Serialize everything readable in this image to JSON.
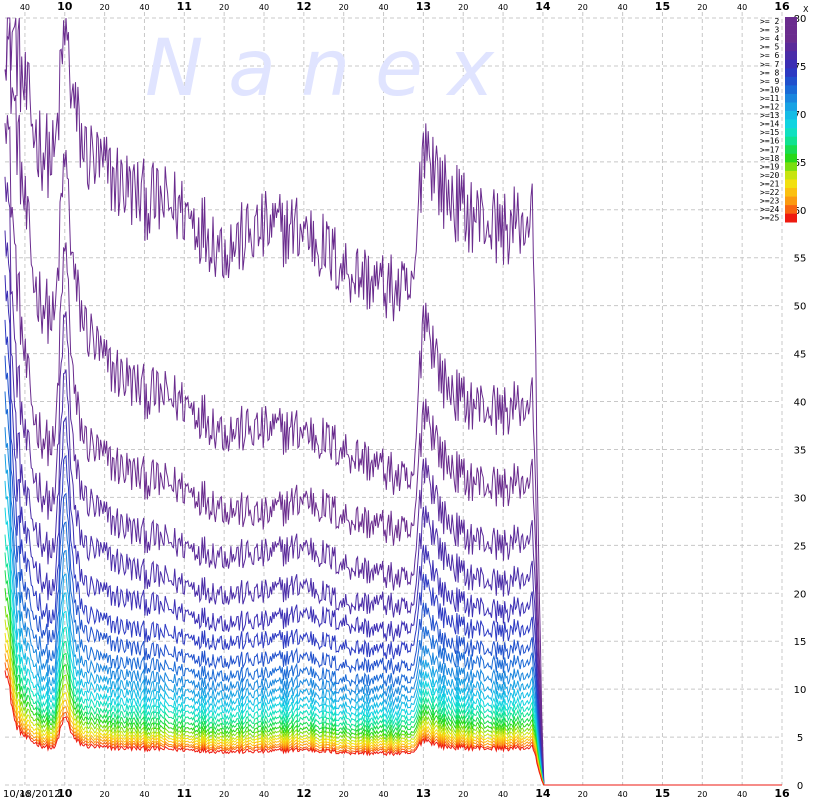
{
  "watermark": "N a n e x",
  "date_label": "10/18/2012",
  "y_unit_label": "X",
  "chart_data": {
    "type": "line",
    "title": "",
    "xlabel": "",
    "ylabel": "",
    "x_start": "09:30",
    "x_end": "16:00",
    "data_end": "14:00",
    "ylim": [
      0,
      80
    ],
    "yticks": [
      0,
      5,
      10,
      15,
      20,
      25,
      30,
      35,
      40,
      45,
      50,
      55,
      60,
      65,
      70,
      75,
      80
    ],
    "grid": true,
    "legend_position": "top-right",
    "x_tick_labels": [
      {
        "time": "09:40",
        "label": "40",
        "major": false
      },
      {
        "time": "10:00",
        "label": "10",
        "major": true
      },
      {
        "time": "10:20",
        "label": "20",
        "major": false
      },
      {
        "time": "10:40",
        "label": "40",
        "major": false
      },
      {
        "time": "11:00",
        "label": "11",
        "major": true
      },
      {
        "time": "11:20",
        "label": "20",
        "major": false
      },
      {
        "time": "11:40",
        "label": "40",
        "major": false
      },
      {
        "time": "12:00",
        "label": "12",
        "major": true
      },
      {
        "time": "12:20",
        "label": "20",
        "major": false
      },
      {
        "time": "12:40",
        "label": "40",
        "major": false
      },
      {
        "time": "13:00",
        "label": "13",
        "major": true
      },
      {
        "time": "13:20",
        "label": "20",
        "major": false
      },
      {
        "time": "13:40",
        "label": "40",
        "major": false
      },
      {
        "time": "14:00",
        "label": "14",
        "major": true
      },
      {
        "time": "14:20",
        "label": "20",
        "major": false
      },
      {
        "time": "14:40",
        "label": "40",
        "major": false
      },
      {
        "time": "15:00",
        "label": "15",
        "major": true
      },
      {
        "time": "15:20",
        "label": "20",
        "major": false
      },
      {
        "time": "15:40",
        "label": "40",
        "major": false
      },
      {
        "time": "16:00",
        "label": "16",
        "major": true
      }
    ],
    "anchor_times": [
      "09:30",
      "09:35",
      "09:40",
      "09:45",
      "09:50",
      "09:55",
      "10:00",
      "10:05",
      "10:10",
      "10:20",
      "10:40",
      "11:00",
      "11:20",
      "11:40",
      "12:00",
      "12:20",
      "12:40",
      "12:55",
      "13:00",
      "13:10",
      "13:20",
      "13:40",
      "13:55",
      "14:00"
    ],
    "series": [
      {
        "name": ">= 2",
        "color": "#6a2c8e",
        "anchors": [
          80,
          78,
          72,
          68,
          66,
          65,
          79,
          70,
          66,
          64,
          61,
          60,
          56,
          58,
          58,
          54,
          52,
          51,
          68,
          62,
          60,
          58,
          59,
          0
        ]
      },
      {
        "name": ">= 3",
        "color": "#6a2c8e",
        "anchors": [
          80,
          70,
          60,
          52,
          50,
          48,
          66,
          52,
          48,
          44,
          41,
          40,
          37,
          37,
          37,
          35,
          33,
          31,
          50,
          42,
          40,
          39,
          40,
          0
        ]
      },
      {
        "name": ">= 4",
        "color": "#6a2c8e",
        "anchors": [
          74,
          55,
          44,
          38,
          36,
          35,
          57,
          40,
          36,
          34,
          32,
          31,
          29,
          28,
          30,
          28,
          27,
          26,
          40,
          34,
          32,
          31,
          32,
          0
        ]
      },
      {
        "name": ">= 5",
        "color": "#5b2a9a",
        "anchors": [
          68,
          45,
          36,
          32,
          30,
          29,
          50,
          33,
          30,
          28,
          26,
          25,
          24,
          24,
          25,
          23,
          22,
          21,
          34,
          28,
          26,
          25,
          26,
          0
        ]
      },
      {
        "name": ">= 6",
        "color": "#4a2ca8",
        "anchors": [
          62,
          38,
          30,
          27,
          25,
          24,
          44,
          28,
          25,
          24,
          22,
          21,
          20,
          20,
          21,
          19,
          19,
          18,
          29,
          24,
          22,
          21,
          22,
          0
        ]
      },
      {
        "name": ">= 7",
        "color": "#3b2eb4",
        "anchors": [
          57,
          33,
          26,
          23,
          21,
          20,
          39,
          24,
          21,
          20,
          19,
          18,
          17,
          17,
          18,
          17,
          16,
          16,
          25,
          20,
          19,
          18,
          19,
          0
        ]
      },
      {
        "name": ">= 8",
        "color": "#2c39c2",
        "anchors": [
          52,
          29,
          23,
          20,
          18,
          17,
          35,
          21,
          18,
          17,
          16,
          15.5,
          15,
          15,
          15.5,
          14.5,
          14,
          14,
          22,
          17.5,
          16.5,
          16,
          16.5,
          0
        ]
      },
      {
        "name": ">= 9",
        "color": "#2050cc",
        "anchors": [
          48,
          26,
          20,
          17.5,
          16,
          15,
          31,
          18.5,
          16,
          15,
          14,
          13.5,
          13,
          13,
          13.5,
          12.5,
          12.5,
          12,
          19,
          15,
          14.5,
          14,
          14.5,
          0
        ]
      },
      {
        "name": ">=10",
        "color": "#1a6ad6",
        "anchors": [
          44,
          23,
          18,
          15.5,
          14,
          13,
          28,
          16.5,
          14,
          13,
          12.5,
          12,
          11.5,
          11.5,
          12,
          11,
          11,
          10.7,
          16.5,
          13.5,
          13,
          12.5,
          13,
          0
        ]
      },
      {
        "name": ">=11",
        "color": "#1a86de",
        "anchors": [
          40,
          21,
          16,
          14,
          12.5,
          11.5,
          25,
          14.5,
          12.5,
          11.8,
          11.2,
          10.8,
          10.4,
          10.4,
          10.8,
          10,
          9.9,
          9.7,
          14.5,
          12,
          11.5,
          11.2,
          11.6,
          0
        ]
      },
      {
        "name": ">=12",
        "color": "#18a2e4",
        "anchors": [
          37,
          19,
          14.5,
          12.5,
          11.2,
          10.4,
          22.5,
          13,
          11.3,
          10.7,
          10.2,
          9.8,
          9.5,
          9.5,
          9.8,
          9.1,
          9,
          8.8,
          13,
          10.8,
          10.4,
          10.1,
          10.5,
          0
        ]
      },
      {
        "name": ">=13",
        "color": "#14bce6",
        "anchors": [
          34,
          17,
          13,
          11.3,
          10.2,
          9.5,
          20.5,
          11.8,
          10.3,
          9.8,
          9.3,
          9,
          8.7,
          8.7,
          9,
          8.3,
          8.2,
          8.1,
          11.8,
          9.8,
          9.5,
          9.2,
          9.6,
          0
        ]
      },
      {
        "name": ">=14",
        "color": "#10d4e0",
        "anchors": [
          31,
          15.5,
          11.8,
          10.3,
          9.3,
          8.7,
          18.5,
          10.7,
          9.4,
          8.9,
          8.5,
          8.2,
          8,
          8,
          8.3,
          7.6,
          7.5,
          7.4,
          10.8,
          9,
          8.7,
          8.4,
          8.8,
          0
        ]
      },
      {
        "name": ">=15",
        "color": "#10e0c0",
        "anchors": [
          28,
          14.2,
          10.8,
          9.4,
          8.5,
          8,
          16.8,
          9.8,
          8.6,
          8.2,
          7.8,
          7.6,
          7.3,
          7.3,
          7.6,
          7,
          6.9,
          6.8,
          9.9,
          8.3,
          8,
          7.8,
          8.1,
          0
        ]
      },
      {
        "name": ">=16",
        "color": "#10e290",
        "anchors": [
          26,
          13,
          9.9,
          8.6,
          7.8,
          7.3,
          15.3,
          9,
          7.9,
          7.5,
          7.2,
          7,
          6.7,
          6.7,
          7,
          6.4,
          6.4,
          6.3,
          9.1,
          7.6,
          7.4,
          7.2,
          7.5,
          0
        ]
      },
      {
        "name": ">=17",
        "color": "#18dc50",
        "anchors": [
          24,
          12,
          9.1,
          8,
          7.2,
          6.8,
          14,
          8.3,
          7.3,
          6.9,
          6.6,
          6.4,
          6.2,
          6.2,
          6.4,
          5.9,
          5.9,
          5.8,
          8.4,
          7,
          6.8,
          6.6,
          6.9,
          0
        ]
      },
      {
        "name": ">=18",
        "color": "#28d818",
        "anchors": [
          22,
          11,
          8.4,
          7.4,
          6.7,
          6.3,
          12.8,
          7.7,
          6.8,
          6.4,
          6.1,
          5.9,
          5.7,
          5.7,
          5.9,
          5.5,
          5.4,
          5.3,
          7.8,
          6.5,
          6.3,
          6.1,
          6.4,
          0
        ]
      },
      {
        "name": ">=19",
        "color": "#7ade10",
        "anchors": [
          20,
          10.1,
          7.7,
          6.8,
          6.2,
          5.8,
          11.7,
          7.1,
          6.3,
          5.9,
          5.6,
          5.5,
          5.3,
          5.3,
          5.5,
          5.1,
          5,
          5,
          7.2,
          6,
          5.8,
          5.7,
          5.9,
          0
        ]
      },
      {
        "name": ">=20",
        "color": "#c8e410",
        "anchors": [
          18.5,
          9.3,
          7.1,
          6.3,
          5.7,
          5.4,
          10.7,
          6.6,
          5.8,
          5.5,
          5.2,
          5.1,
          4.9,
          4.9,
          5.1,
          4.7,
          4.7,
          4.6,
          6.7,
          5.6,
          5.4,
          5.3,
          5.5,
          0
        ]
      },
      {
        "name": ">=21",
        "color": "#f2e010",
        "anchors": [
          17,
          8.6,
          6.6,
          5.8,
          5.3,
          5,
          9.8,
          6.1,
          5.4,
          5.1,
          4.9,
          4.8,
          4.6,
          4.6,
          4.8,
          4.4,
          4.4,
          4.3,
          6.2,
          5.2,
          5,
          4.9,
          5.1,
          0
        ]
      },
      {
        "name": ">=22",
        "color": "#fbc010",
        "anchors": [
          15.8,
          8,
          6.1,
          5.4,
          4.9,
          4.7,
          9,
          5.7,
          5,
          4.8,
          4.6,
          4.5,
          4.3,
          4.3,
          4.5,
          4.1,
          4.1,
          4,
          5.8,
          4.9,
          4.7,
          4.6,
          4.8,
          0
        ]
      },
      {
        "name": ">=23",
        "color": "#fb9a10",
        "anchors": [
          14.7,
          7.4,
          5.7,
          5,
          4.6,
          4.4,
          8.3,
          5.3,
          4.7,
          4.5,
          4.3,
          4.2,
          4,
          4,
          4.2,
          3.9,
          3.8,
          3.8,
          5.4,
          4.6,
          4.4,
          4.3,
          4.5,
          0
        ]
      },
      {
        "name": ">=24",
        "color": "#f86410",
        "anchors": [
          13.7,
          6.9,
          5.3,
          4.7,
          4.3,
          4.1,
          7.7,
          5,
          4.4,
          4.2,
          4.1,
          4,
          3.8,
          3.8,
          3.9,
          3.6,
          3.6,
          3.5,
          5.1,
          4.3,
          4.1,
          4,
          4.2,
          0
        ]
      },
      {
        "name": ">=25",
        "color": "#ee1a10",
        "anchors": [
          12.8,
          6.4,
          5,
          4.4,
          4,
          3.8,
          7.2,
          4.7,
          4.1,
          3.9,
          3.8,
          3.7,
          3.5,
          3.5,
          3.7,
          3.4,
          3.3,
          3.3,
          4.8,
          4,
          3.9,
          3.8,
          3.9,
          0
        ]
      }
    ]
  }
}
